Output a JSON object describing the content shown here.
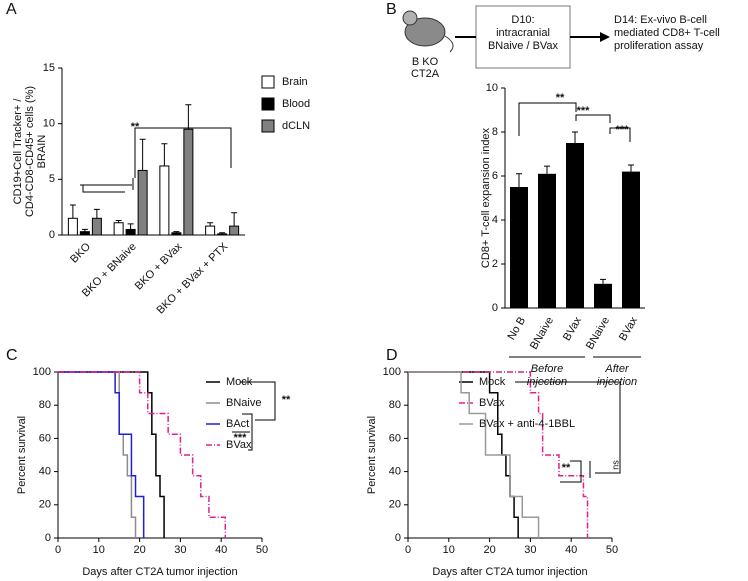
{
  "chart_data": [
    {
      "panel": "A",
      "type": "grouped-bar",
      "ylabel": [
        "CD19+Cell Tracker+ /",
        "CD4-CD8-CD45+ cells (%)",
        "BRAIN"
      ],
      "categories": [
        "BKO",
        "BKO + BNaive",
        "BKO + BVax",
        "BKO + BVax + PTX"
      ],
      "series": [
        {
          "name": "Brain",
          "color": "#ffffff",
          "values": [
            1.5,
            1.1,
            6.2,
            0.8
          ],
          "errors": [
            1.2,
            0.2,
            2.0,
            0.3
          ]
        },
        {
          "name": "Blood",
          "color": "#000000",
          "values": [
            0.3,
            0.5,
            0.2,
            0.1
          ],
          "errors": [
            0.2,
            0.5,
            0.1,
            0.1
          ]
        },
        {
          "name": "dCLN",
          "color": "#808080",
          "values": [
            1.5,
            5.8,
            9.5,
            0.8
          ],
          "errors": [
            0.8,
            2.8,
            2.2,
            1.2
          ]
        }
      ],
      "ylim": [
        0,
        15
      ],
      "yticks": [
        0,
        5,
        10,
        15
      ],
      "annotations": [
        "**"
      ]
    },
    {
      "panel": "B",
      "type": "bar",
      "diagram": {
        "mouse_label": [
          "B KO",
          "CT2A"
        ],
        "step_1": [
          "D10:",
          "intracranial",
          "BNaive / BVax"
        ],
        "step_2": [
          "D14: Ex-vivo B-cell",
          "mediated CD8+ T-cell",
          "proliferation assay"
        ]
      },
      "ylabel": "CD8+ T-cell expansion index",
      "categories": [
        "No B",
        "BNaive",
        "BVax",
        "BNaive",
        "BVax"
      ],
      "values": [
        5.5,
        6.1,
        7.5,
        1.1,
        6.2
      ],
      "errors": [
        0.6,
        0.35,
        0.5,
        0.2,
        0.3
      ],
      "color": "#000000",
      "group_labels": [
        [
          "Before",
          "injection"
        ],
        [
          "After",
          "injection"
        ]
      ],
      "ylim": [
        0,
        10
      ],
      "yticks": [
        0,
        2,
        4,
        6,
        8,
        10
      ],
      "annotations": [
        "**",
        "***",
        "***"
      ]
    },
    {
      "panel": "C",
      "type": "survival",
      "xlabel": "Days after CT2A tumor injection",
      "ylabel": "Percent survival",
      "series": [
        {
          "name": "Mock",
          "color": "#000000",
          "dash": "",
          "x": [
            0,
            22,
            23,
            24,
            25,
            26
          ],
          "values": [
            100,
            87.5,
            62.5,
            37.5,
            25,
            0
          ]
        },
        {
          "name": "BNaive",
          "color": "#8c8c8c",
          "dash": "",
          "x": [
            0,
            15,
            16,
            17,
            18,
            19
          ],
          "values": [
            100,
            62.5,
            50,
            37.5,
            12.5,
            0
          ]
        },
        {
          "name": "BAct",
          "color": "#1f1fd6",
          "dash": "",
          "x": [
            0,
            14,
            15,
            18,
            19,
            21
          ],
          "values": [
            100,
            87.5,
            62.5,
            37.5,
            25,
            0
          ]
        },
        {
          "name": "BVax",
          "color": "#e0218a",
          "dash": "6 2 1 2",
          "x": [
            0,
            20,
            22,
            27,
            30,
            33,
            35,
            37,
            41
          ],
          "values": [
            100,
            87.5,
            75,
            62.5,
            50,
            37.5,
            25,
            12.5,
            0
          ]
        }
      ],
      "xlim": [
        0,
        50
      ],
      "xticks": [
        0,
        10,
        20,
        30,
        40,
        50
      ],
      "ylim": [
        0,
        100
      ],
      "yticks": [
        0,
        20,
        40,
        60,
        80,
        100
      ],
      "annotations": [
        "***",
        "**"
      ]
    },
    {
      "panel": "D",
      "type": "survival",
      "xlabel": "Days after CT2A tumor injection",
      "ylabel": "Percent survival",
      "series": [
        {
          "name": "Mock",
          "color": "#000000",
          "dash": "",
          "x": [
            0,
            20,
            22,
            23,
            24,
            25,
            26,
            27
          ],
          "values": [
            100,
            87.5,
            62.5,
            50,
            37.5,
            25,
            12.5,
            0
          ]
        },
        {
          "name": "BVax",
          "color": "#e0218a",
          "dash": "6 2 1 2",
          "x": [
            0,
            30,
            32,
            33,
            37,
            43,
            44
          ],
          "values": [
            100,
            87.5,
            75,
            50,
            37.5,
            25,
            0
          ]
        },
        {
          "name": "BVax + anti-4-1BBL",
          "color": "#9a9a9a",
          "dash": "",
          "x": [
            0,
            13,
            15,
            19,
            25,
            28,
            32
          ],
          "values": [
            100,
            87.5,
            75,
            50,
            25,
            12.5,
            0
          ]
        }
      ],
      "xlim": [
        0,
        50
      ],
      "xticks": [
        0,
        10,
        20,
        30,
        40,
        50
      ],
      "ylim": [
        0,
        100
      ],
      "yticks": [
        0,
        20,
        40,
        60,
        80,
        100
      ],
      "annotations": [
        "**",
        "ns"
      ]
    }
  ]
}
